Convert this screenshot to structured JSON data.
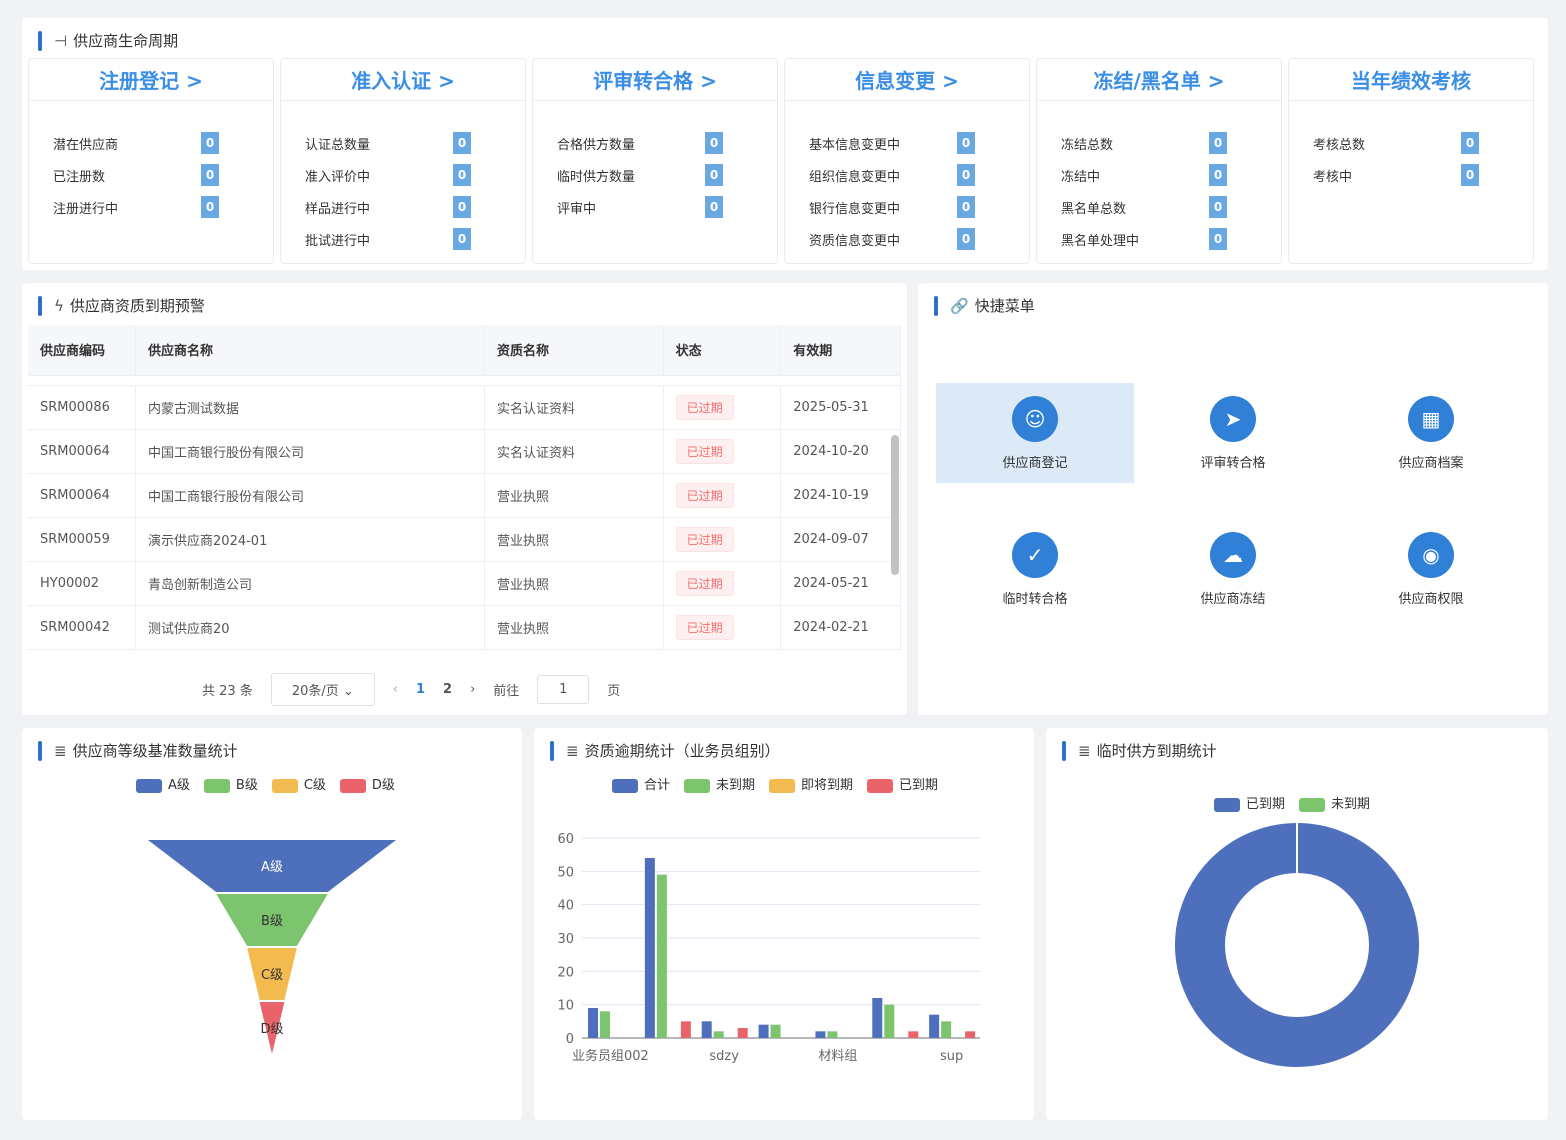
{
  "lifecycle": {
    "title": "供应商生命周期",
    "cards": [
      {
        "title": "注册登记 >",
        "rows": [
          {
            "label": "潜在供应商",
            "value": "0"
          },
          {
            "label": "已注册数",
            "value": "0"
          },
          {
            "label": "注册进行中",
            "value": "0"
          }
        ]
      },
      {
        "title": "准入认证 >",
        "rows": [
          {
            "label": "认证总数量",
            "value": "0"
          },
          {
            "label": "准入评价中",
            "value": "0"
          },
          {
            "label": "样品进行中",
            "value": "0"
          },
          {
            "label": "批试进行中",
            "value": "0"
          }
        ]
      },
      {
        "title": "评审转合格 >",
        "rows": [
          {
            "label": "合格供方数量",
            "value": "0"
          },
          {
            "label": "临时供方数量",
            "value": "0"
          },
          {
            "label": "评审中",
            "value": "0"
          }
        ]
      },
      {
        "title": "信息变更 >",
        "rows": [
          {
            "label": "基本信息变更中",
            "value": "0"
          },
          {
            "label": "组织信息变更中",
            "value": "0"
          },
          {
            "label": "银行信息变更中",
            "value": "0"
          },
          {
            "label": "资质信息变更中",
            "value": "0"
          }
        ]
      },
      {
        "title": "冻结/黑名单 >",
        "rows": [
          {
            "label": "冻结总数",
            "value": "0"
          },
          {
            "label": "冻结中",
            "value": "0"
          },
          {
            "label": "黑名单总数",
            "value": "0"
          },
          {
            "label": "黑名单处理中",
            "value": "0"
          }
        ]
      },
      {
        "title": "当年绩效考核",
        "rows": [
          {
            "label": "考核总数",
            "value": "0"
          },
          {
            "label": "考核中",
            "value": "0"
          }
        ]
      }
    ]
  },
  "expiry": {
    "title": "供应商资质到期预警",
    "columns": [
      "供应商编码",
      "供应商名称",
      "资质名称",
      "状态",
      "有效期"
    ],
    "rows": [
      [
        "SRM00086",
        "内蒙古测试数据",
        "实名认证资料",
        "已过期",
        "2025-05-31"
      ],
      [
        "SRM00064",
        "中国工商银行股份有限公司",
        "实名认证资料",
        "已过期",
        "2024-10-20"
      ],
      [
        "SRM00064",
        "中国工商银行股份有限公司",
        "营业执照",
        "已过期",
        "2024-10-19"
      ],
      [
        "SRM00059",
        "演示供应商2024-01",
        "营业执照",
        "已过期",
        "2024-09-07"
      ],
      [
        "HY00002",
        "青岛创新制造公司",
        "营业执照",
        "已过期",
        "2024-05-21"
      ],
      [
        "SRM00042",
        "测试供应商20",
        "营业执照",
        "已过期",
        "2024-02-21"
      ]
    ],
    "pager": {
      "total": "共 23 条",
      "size": "20条/页",
      "pages": [
        "1",
        "2"
      ],
      "current": "1",
      "goto": "前往",
      "goto_value": "1",
      "page_unit": "页"
    }
  },
  "quick": {
    "title": "快捷菜单",
    "items": [
      {
        "label": "供应商登记",
        "icon": "user-icon"
      },
      {
        "label": "评审转合格",
        "icon": "send-icon"
      },
      {
        "label": "供应商档案",
        "icon": "calendar-icon"
      },
      {
        "label": "临时转合格",
        "icon": "checklist-icon"
      },
      {
        "label": "供应商冻结",
        "icon": "cloud-icon"
      },
      {
        "label": "供应商权限",
        "icon": "eye-icon"
      }
    ]
  },
  "colors": {
    "blue": "#4e6fbb",
    "green": "#7cc46e",
    "yellow": "#f3bb4f",
    "red": "#e8646a",
    "accent": "#2f6fc4"
  },
  "chart_data": [
    {
      "type": "funnel",
      "title": "供应商等级基准数量统计",
      "legend": [
        "A级",
        "B级",
        "C级",
        "D级"
      ],
      "categories": [
        "A级",
        "B级",
        "C级",
        "D级"
      ],
      "values": [
        100,
        45,
        20,
        10
      ]
    },
    {
      "type": "bar",
      "title": "资质逾期统计（业务员组别）",
      "categories": [
        "业务员组002",
        "",
        "sdzy",
        "",
        "材料组",
        "",
        "sup"
      ],
      "series": [
        {
          "name": "合计",
          "values": [
            9,
            54,
            5,
            4,
            2,
            12,
            7
          ]
        },
        {
          "name": "未到期",
          "values": [
            8,
            49,
            2,
            4,
            2,
            10,
            5
          ]
        },
        {
          "name": "即将到期",
          "values": [
            0,
            0,
            0,
            0,
            0,
            0,
            0
          ]
        },
        {
          "name": "已到期",
          "values": [
            0,
            5,
            3,
            0,
            0,
            2,
            2
          ]
        }
      ],
      "ylim": [
        0,
        60
      ],
      "yticks": [
        0,
        10,
        20,
        30,
        40,
        50,
        60
      ],
      "grid": true,
      "legend_position": "top"
    },
    {
      "type": "pie",
      "title": "临时供方到期统计",
      "donut": true,
      "series": [
        {
          "name": "已到期",
          "value": 100
        },
        {
          "name": "未到期",
          "value": 0
        }
      ],
      "legend_position": "top"
    }
  ]
}
